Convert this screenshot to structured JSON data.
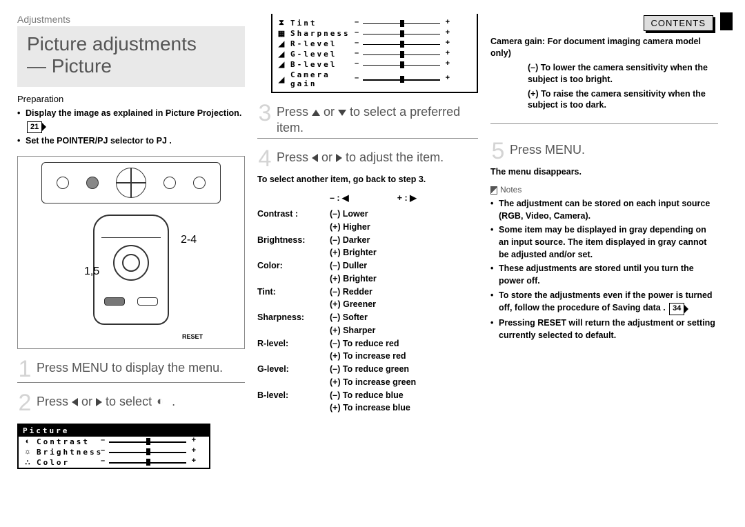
{
  "breadcrumb": "Adjustments",
  "title_line1": "Picture adjustments",
  "title_line2": "— Picture",
  "preparation_heading": "Preparation",
  "prep_items": {
    "a": "Display the image as explained in Picture Projection.",
    "a_page": "21",
    "b": "Set the POINTER/PJ selector to PJ ."
  },
  "remote_labels": {
    "steps15": "1,5",
    "steps24": "2-4",
    "reset": "RESET"
  },
  "steps": {
    "s1": "Press MENU to display the menu.",
    "s2a": "Press ",
    "s2b": " or ",
    "s2c": " to select ",
    "s3a": "Press ",
    "s3b": " or ",
    "s3c": " to select a preferred item.",
    "s4a": "Press ",
    "s4b": " or ",
    "s4c": " to adjust the item.",
    "s5": "Press MENU."
  },
  "osd_title": "Picture",
  "osd_rows": [
    {
      "icon": "◐",
      "label": "Contrast"
    },
    {
      "icon": "☼",
      "label": "Brightness"
    },
    {
      "icon": "∴",
      "label": "Color"
    },
    {
      "icon": "⧗",
      "label": "Tint"
    },
    {
      "icon": "▦",
      "label": "Sharpness"
    },
    {
      "icon": "◢",
      "label": "R-level"
    },
    {
      "icon": "◢",
      "label": "G-level"
    },
    {
      "icon": "◢",
      "label": "B-level"
    },
    {
      "icon": "◢",
      "label": "Camera gain"
    }
  ],
  "sub_step4": "To select another item, go back to step 3.",
  "adjust_header": {
    "minus": "– : ◀",
    "plus": "+ : ▶"
  },
  "adjustments": [
    {
      "k": "Contrast :",
      "m": "(–) Lower",
      "p": "(+) Higher"
    },
    {
      "k": "Brightness:",
      "m": "(–) Darker",
      "p": "(+) Brighter"
    },
    {
      "k": "Color:",
      "m": "(–) Duller",
      "p": "(+) Brighter"
    },
    {
      "k": "Tint:",
      "m": "(–) Redder",
      "p": "(+) Greener"
    },
    {
      "k": "Sharpness:",
      "m": "(–) Softer",
      "p": "(+) Sharper"
    },
    {
      "k": "R-level:",
      "m": "(–) To reduce red",
      "p": "(+) To increase red"
    },
    {
      "k": "G-level:",
      "m": "(–) To reduce green",
      "p": "(+) To increase green"
    },
    {
      "k": "B-level:",
      "m": "(–) To reduce blue",
      "p": "(+) To increase blue"
    }
  ],
  "contents_btn": "CONTENTS",
  "camera_gain": {
    "heading": "Camera gain: For document imaging camera model only)",
    "minus": "(–) To lower the camera sensitivity when the subject is too bright.",
    "plus": "(+) To raise the camera sensitivity when the subject is too dark."
  },
  "after5": "The menu disappears.",
  "notes_heading": "Notes",
  "notes": {
    "n1": "The adjustment can be stored on each input source (RGB, Video, Camera).",
    "n2": "Some item may be displayed in gray depending on an input source. The item displayed in gray cannot be adjusted and/or set.",
    "n3": "These adjustments are stored until you turn the power off.",
    "n4a": "To store the adjustments even if the power is turned off, follow the procedure of Saving data .",
    "n4_page": "34",
    "n5": "Pressing RESET will return the adjustment or setting currently selected to default."
  }
}
